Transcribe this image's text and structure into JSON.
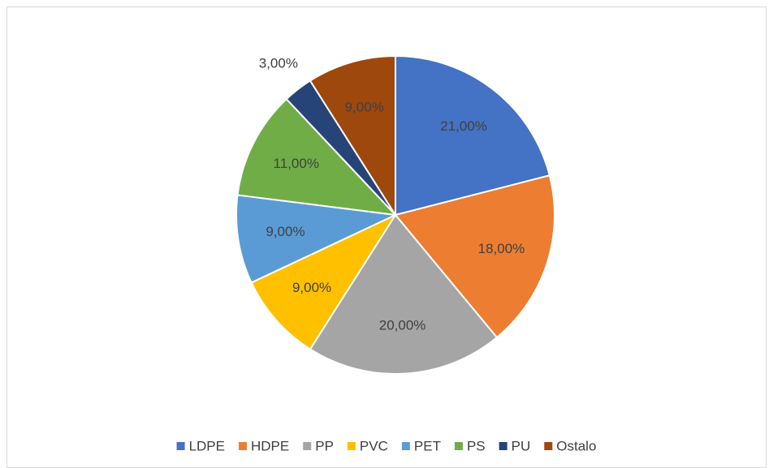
{
  "chart_data": {
    "type": "pie",
    "categories": [
      "LDPE",
      "HDPE",
      "PP",
      "PVC",
      "PET",
      "PS",
      "PU",
      "Ostalo"
    ],
    "values": [
      21,
      18,
      20,
      9,
      9,
      11,
      3,
      9
    ],
    "value_labels": [
      "21,00%",
      "18,00%",
      "20,00%",
      "9,00%",
      "9,00%",
      "11,00%",
      "3,00%",
      "9,00%"
    ],
    "colors": [
      "#4472c4",
      "#ed7d31",
      "#a5a5a5",
      "#ffc000",
      "#5b9bd5",
      "#70ad47",
      "#264478",
      "#9e480e"
    ],
    "legend": "bottom"
  }
}
